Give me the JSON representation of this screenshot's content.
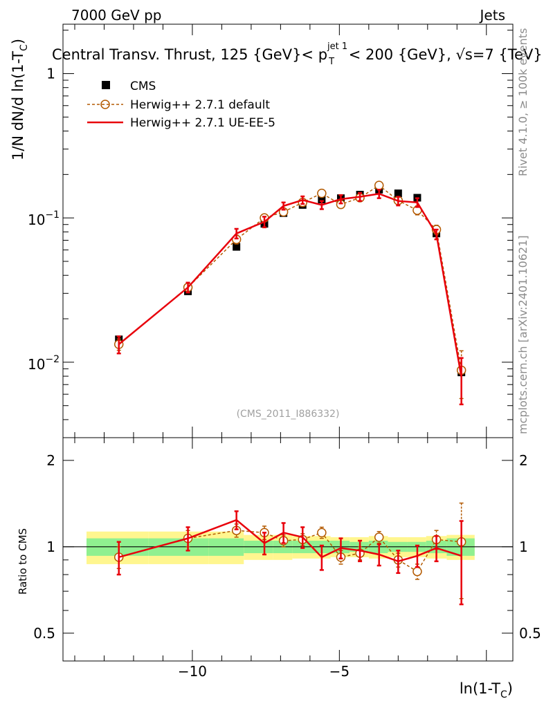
{
  "header": {
    "left": "7000 GeV pp",
    "right": "Jets",
    "title_pre": "Central Transv. Thrust, 125 {GeV}< p",
    "title_sup": "jet 1",
    "title_sub": "T",
    "title_post": " < 200 {GeV}, √s=7 {TeV}",
    "watermark": "(CMS_2011_I886332)",
    "side_top": "Rivet 4.1.0, ≥ 100k events",
    "side_bottom": "mcplots.cern.ch [arXiv:2401.10621]"
  },
  "axes": {
    "ylabel_main_prefix": "1/N    dN/d ln(1-T",
    "ylabel_main_sub": "C",
    "ylabel_main_suffix": ")",
    "ylabel_ratio": "Ratio to CMS",
    "xlabel_prefix": "ln(1-T",
    "xlabel_sub": "C",
    "xlabel_suffix": ")",
    "main_ticks": [
      {
        "value": 1,
        "base": "1",
        "exp": ""
      },
      {
        "value": 0.1,
        "base": "10",
        "exp": "−1"
      },
      {
        "value": 0.01,
        "base": "10",
        "exp": "−2"
      }
    ],
    "ratio_ticks": [
      {
        "value": 2,
        "label": "2"
      },
      {
        "value": 1,
        "label": "1"
      },
      {
        "value": 0.5,
        "label": "0.5"
      }
    ],
    "x_ticks": [
      {
        "value": -10,
        "label": "−10"
      },
      {
        "value": -5,
        "label": "−5"
      }
    ]
  },
  "chart_data": {
    "type": "scatter",
    "title": "Central Transv. Thrust, 125 {GeV}< p_T^{jet 1} < 200 {GeV}, √s=7 {TeV}",
    "xlabel": "ln(1-T_C)",
    "ylabel": "1/N dN/d ln(1-T_C)",
    "xlim": [
      -14.4,
      0.9
    ],
    "ylim": [
      0.003,
      2.2
    ],
    "yscale": "log",
    "ratio_ylim": [
      0.4,
      2.4
    ],
    "ratio_ylabel": "Ratio to CMS",
    "x": [
      -12.5,
      -10.15,
      -8.5,
      -7.55,
      -6.9,
      -6.25,
      -5.6,
      -4.95,
      -4.3,
      -3.65,
      -3.0,
      -2.35,
      -1.7,
      -0.85
    ],
    "series": [
      {
        "name": "CMS",
        "style": "markers",
        "color": "#000000",
        "values": [
          0.0144,
          0.031,
          0.063,
          0.091,
          0.108,
          0.123,
          0.134,
          0.137,
          0.145,
          0.157,
          0.148,
          0.138,
          0.078,
          0.0085
        ]
      },
      {
        "name": "Herwig++ 2.7.1 default",
        "style": "dashed-circles",
        "color": "#b35900",
        "values": [
          0.0133,
          0.033,
          0.071,
          0.1,
          0.11,
          0.128,
          0.148,
          0.124,
          0.138,
          0.168,
          0.132,
          0.113,
          0.083,
          0.0088
        ],
        "errors": [
          0.0012,
          0.0025,
          0.005,
          0.006,
          0.005,
          0.005,
          0.006,
          0.007,
          0.008,
          0.007,
          0.008,
          0.008,
          0.006,
          0.0032
        ],
        "ratio": [
          0.92,
          1.07,
          1.14,
          1.12,
          1.05,
          1.06,
          1.12,
          0.92,
          0.95,
          1.08,
          0.9,
          0.82,
          1.06,
          1.04
        ],
        "ratio_errors": [
          0.08,
          0.07,
          0.06,
          0.06,
          0.05,
          0.05,
          0.05,
          0.05,
          0.05,
          0.05,
          0.05,
          0.05,
          0.08,
          0.38
        ]
      },
      {
        "name": "Herwig++ 2.7.1 UE-EE-5",
        "style": "solid-line",
        "color": "#e8000b",
        "values": [
          0.0133,
          0.033,
          0.078,
          0.094,
          0.121,
          0.133,
          0.123,
          0.135,
          0.14,
          0.147,
          0.131,
          0.128,
          0.077,
          0.0079
        ],
        "errors": [
          0.0018,
          0.0026,
          0.006,
          0.008,
          0.007,
          0.008,
          0.008,
          0.009,
          0.009,
          0.01,
          0.009,
          0.009,
          0.006,
          0.0028
        ],
        "ratio": [
          0.92,
          1.07,
          1.24,
          1.03,
          1.12,
          1.08,
          0.92,
          0.99,
          0.97,
          0.94,
          0.89,
          0.93,
          0.99,
          0.93
        ],
        "ratio_errors": [
          0.12,
          0.1,
          0.09,
          0.09,
          0.09,
          0.09,
          0.09,
          0.08,
          0.08,
          0.08,
          0.08,
          0.08,
          0.1,
          0.3
        ]
      }
    ],
    "uncertainty_band": {
      "edges": [
        -13.6,
        -11.5,
        -9.45,
        -8.25,
        -7.25,
        -6.6,
        -5.95,
        -5.3,
        -4.65,
        -4.0,
        -3.35,
        -2.7,
        -2.05,
        -1.35,
        -0.4
      ],
      "green_half_width": [
        0.07,
        0.07,
        0.07,
        0.05,
        0.05,
        0.05,
        0.05,
        0.05,
        0.04,
        0.05,
        0.04,
        0.04,
        0.05,
        0.07
      ],
      "yellow_half_width": [
        0.13,
        0.13,
        0.13,
        0.1,
        0.1,
        0.09,
        0.09,
        0.08,
        0.08,
        0.09,
        0.08,
        0.08,
        0.09,
        0.1
      ]
    }
  }
}
